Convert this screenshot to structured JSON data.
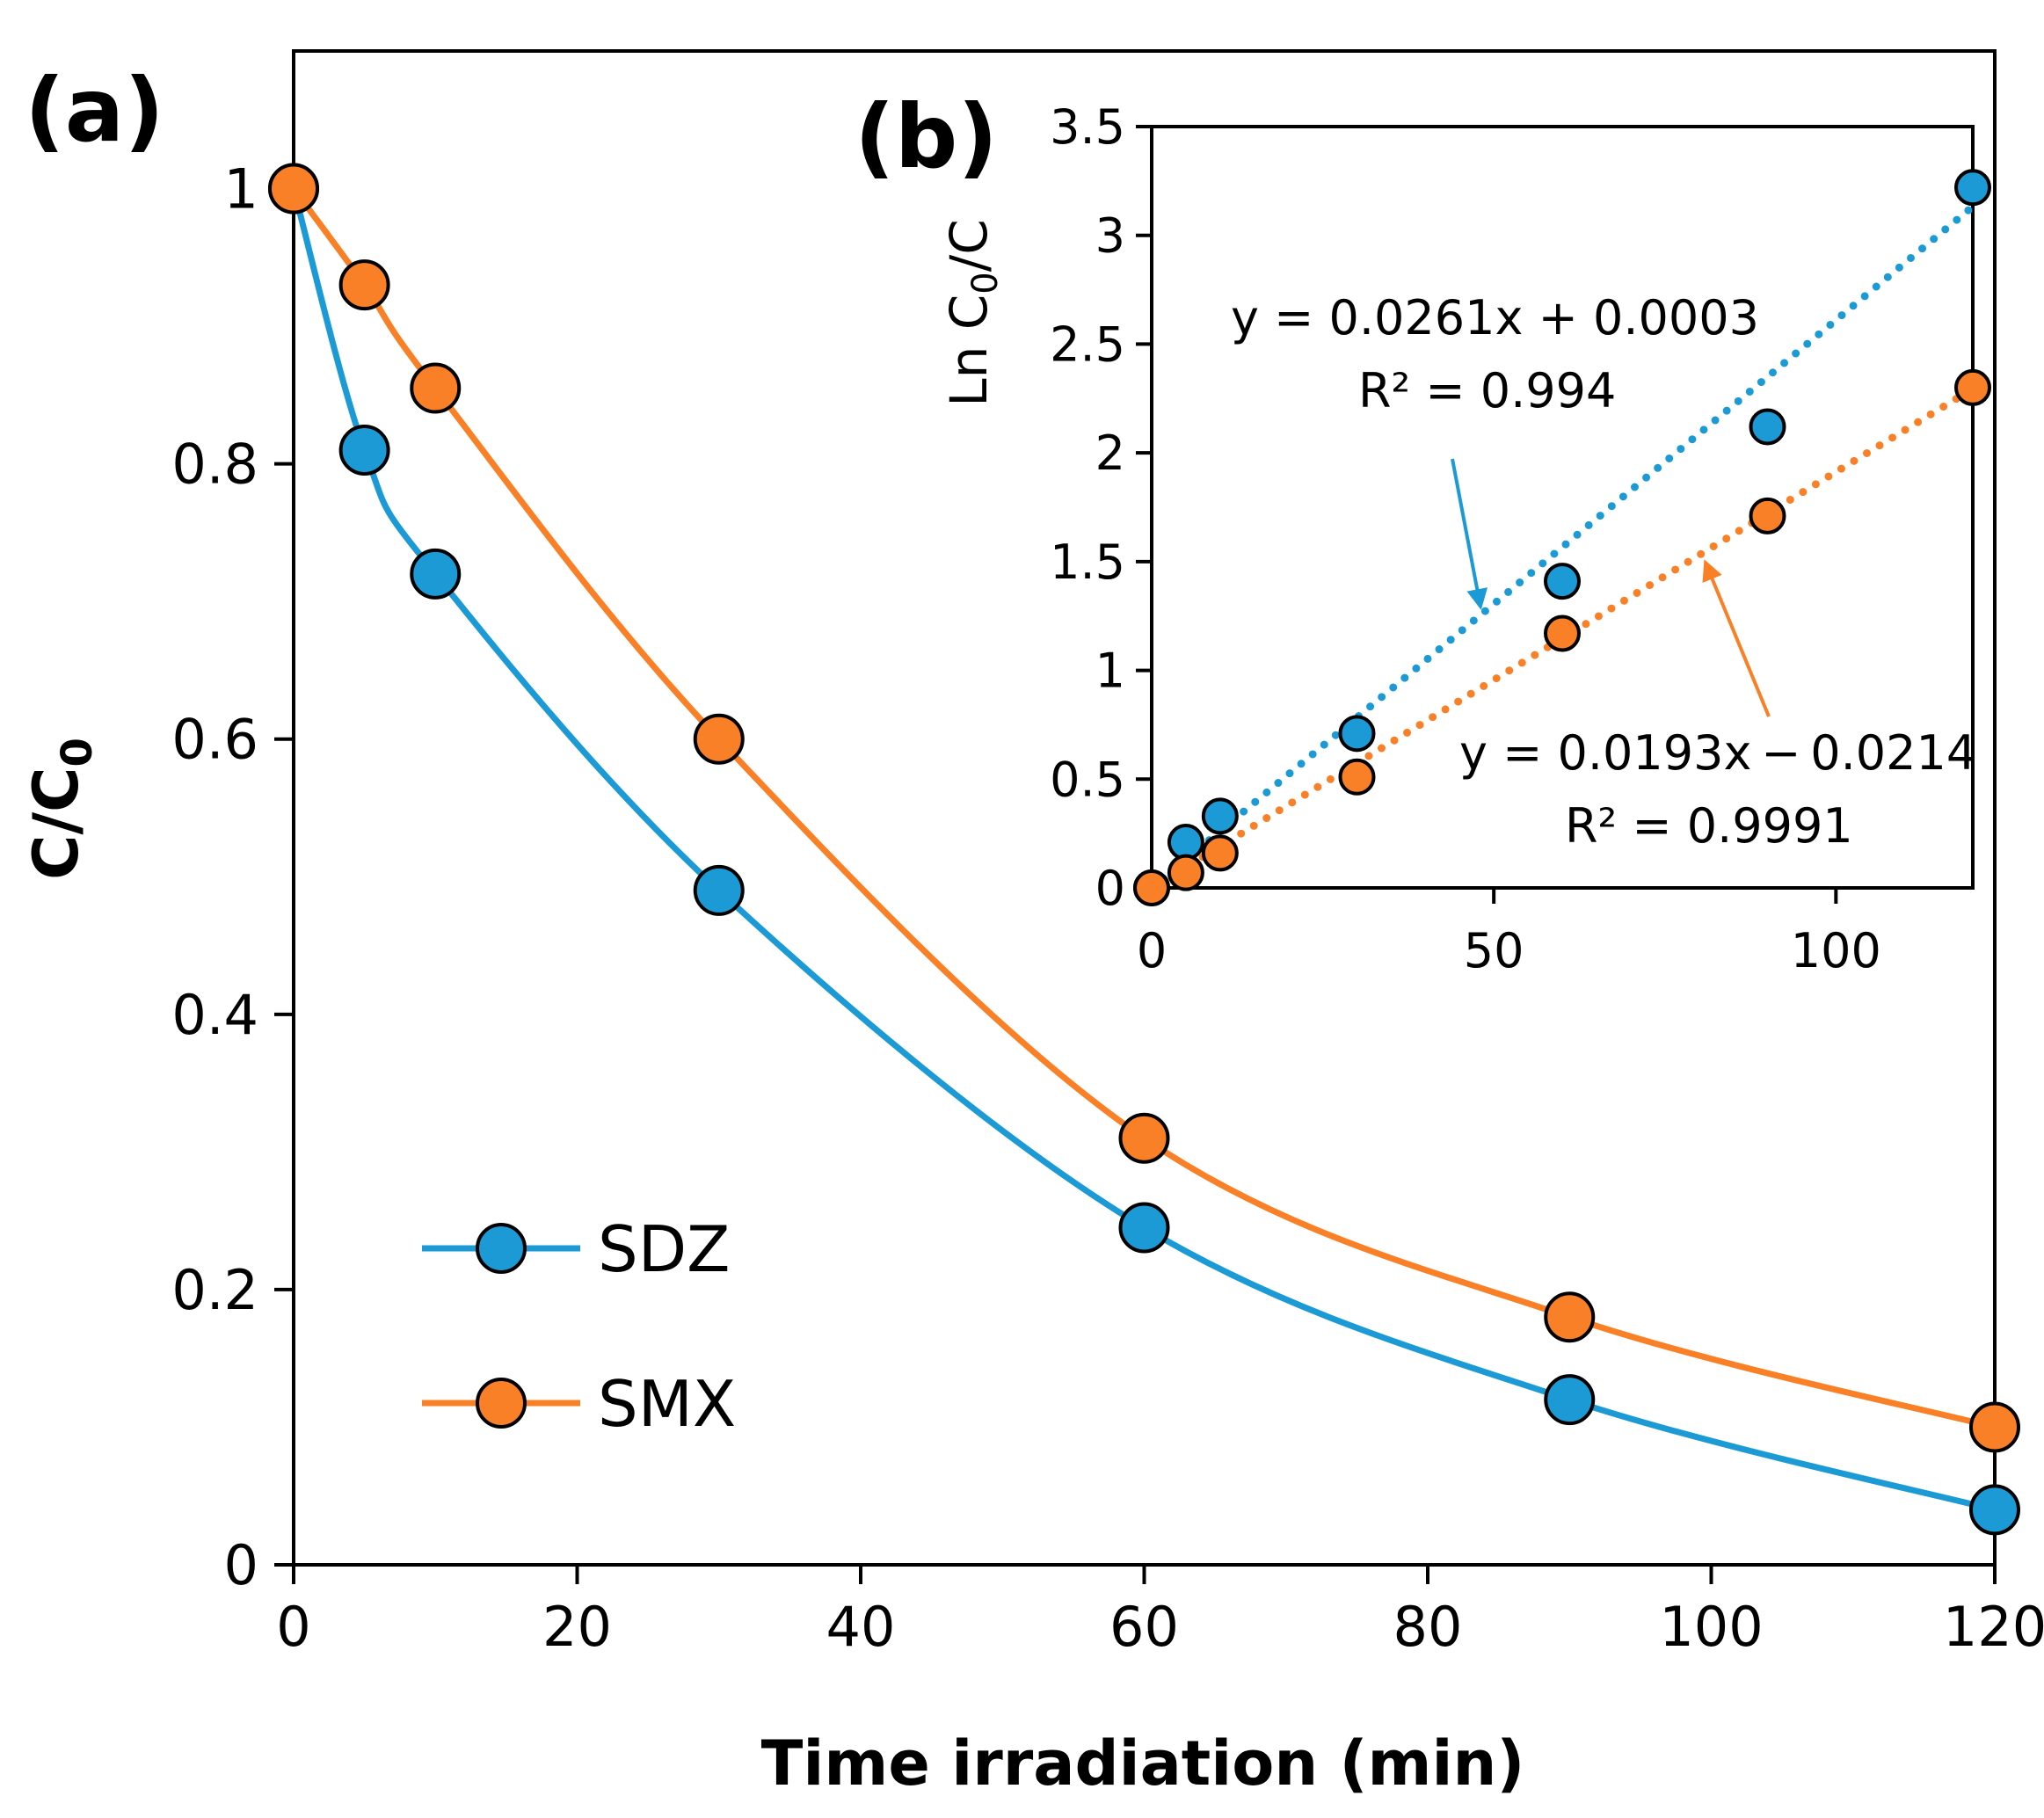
{
  "chart_data": [
    {
      "id": "a",
      "panel_label": "(a)",
      "type": "line",
      "xlabel": "Time irradiation (min)",
      "ylabel_main": "C/C",
      "ylabel_sub": "0",
      "xlim": [
        0,
        120
      ],
      "ylim": [
        0,
        1.1
      ],
      "xticks": [
        0,
        20,
        40,
        60,
        80,
        100,
        120
      ],
      "xtick_labels": [
        "0",
        "20",
        "40",
        "60",
        "80",
        "100",
        "120"
      ],
      "yticks": [
        0,
        0.2,
        0.4,
        0.6,
        0.8,
        1
      ],
      "ytick_labels": [
        "0",
        "0.2",
        "0.4",
        "0.6",
        "0.8",
        "1"
      ],
      "grid": false,
      "legend_position": "bottom-left",
      "x": [
        0,
        5,
        10,
        30,
        60,
        90,
        120
      ],
      "series": [
        {
          "name": "SDZ",
          "color": "#1b9ad6",
          "values": [
            1.0,
            0.81,
            0.72,
            0.49,
            0.245,
            0.12,
            0.04
          ]
        },
        {
          "name": "SMX",
          "color": "#f98026",
          "values": [
            1.0,
            0.93,
            0.855,
            0.6,
            0.31,
            0.18,
            0.1
          ]
        }
      ]
    },
    {
      "id": "b",
      "panel_label": "(b)",
      "type": "scatter",
      "ylabel_main": "Ln C",
      "ylabel_sub": "0",
      "ylabel_tail": "/C",
      "xlim": [
        0,
        120
      ],
      "ylim": [
        0,
        3.5
      ],
      "xticks": [
        0,
        50,
        100
      ],
      "xtick_labels": [
        "0",
        "50",
        "100"
      ],
      "yticks": [
        0,
        0.5,
        1,
        1.5,
        2,
        2.5,
        3,
        3.5
      ],
      "ytick_labels": [
        "0",
        "0.5",
        "1",
        "1.5",
        "2",
        "2.5",
        "3",
        "3.5"
      ],
      "grid": false,
      "x": [
        0,
        5,
        10,
        30,
        60,
        90,
        120
      ],
      "series": [
        {
          "name": "SDZ",
          "color": "#1b9ad6",
          "values": [
            0,
            0.21,
            0.33,
            0.71,
            1.41,
            2.12,
            3.22
          ],
          "trend": {
            "slope": 0.0261,
            "intercept": 0.0003
          },
          "equation": "y = 0.0261x + 0.0003",
          "r2": "R² = 0.994"
        },
        {
          "name": "SMX",
          "color": "#f98026",
          "values": [
            0,
            0.07,
            0.16,
            0.51,
            1.17,
            1.71,
            2.3
          ],
          "trend": {
            "slope": 0.0193,
            "intercept": -0.0214
          },
          "equation": "y = 0.0193x − 0.0214",
          "r2": "R² = 0.9991"
        }
      ]
    }
  ]
}
